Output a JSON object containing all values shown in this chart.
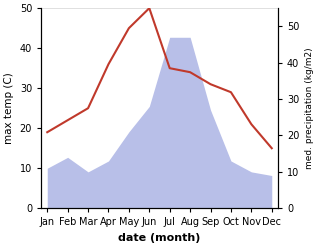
{
  "months": [
    "Jan",
    "Feb",
    "Mar",
    "Apr",
    "May",
    "Jun",
    "Jul",
    "Aug",
    "Sep",
    "Oct",
    "Nov",
    "Dec"
  ],
  "temperature": [
    19,
    22,
    25,
    36,
    45,
    50,
    35,
    34,
    31,
    29,
    21,
    15
  ],
  "precipitation": [
    11,
    14,
    10,
    13,
    21,
    28,
    47,
    47,
    27,
    13,
    10,
    9
  ],
  "temp_color": "#c0392b",
  "precip_fill_color": "#b8bfe8",
  "ylim_left": [
    0,
    50
  ],
  "ylim_right": [
    0,
    55
  ],
  "right_ticks": [
    0,
    10,
    20,
    30,
    40,
    50
  ],
  "left_ticks": [
    0,
    10,
    20,
    30,
    40,
    50
  ],
  "xlabel": "date (month)",
  "ylabel_left": "max temp (C)",
  "ylabel_right": "med. precipitation (kg/m2)",
  "figsize": [
    3.18,
    2.47
  ],
  "dpi": 100
}
